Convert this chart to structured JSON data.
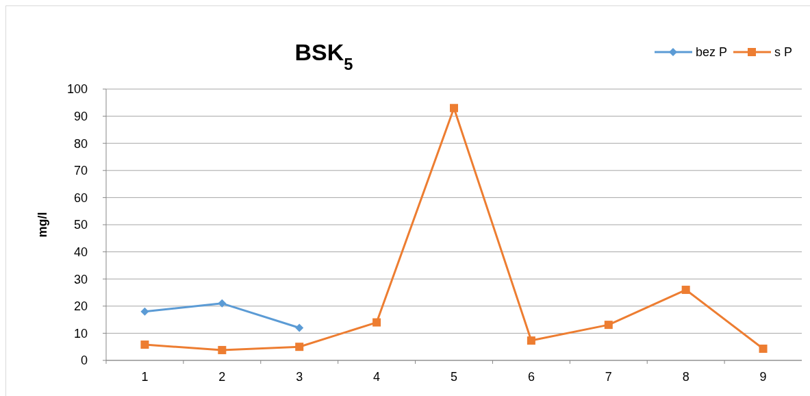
{
  "chart_data": {
    "type": "line",
    "title": "BSK$_{5}$",
    "ylabel": "mg/l",
    "categories": [
      "1",
      "2",
      "3",
      "4",
      "5",
      "6",
      "7",
      "8",
      "9"
    ],
    "series": [
      {
        "name": "bez P",
        "color": "#5b9bd5",
        "marker": "diamond",
        "values": [
          18,
          21,
          12,
          null,
          null,
          null,
          null,
          null,
          null
        ]
      },
      {
        "name": "s P",
        "color": "#ed7d31",
        "marker": "square",
        "values": [
          5.8,
          3.8,
          5,
          14,
          93,
          7.3,
          13.1,
          26,
          4.3
        ]
      }
    ],
    "ylim": [
      0,
      100
    ],
    "yticks": [
      0,
      10,
      20,
      30,
      40,
      50,
      60,
      70,
      80,
      90,
      100
    ],
    "grid": "y",
    "legend": "top right"
  }
}
